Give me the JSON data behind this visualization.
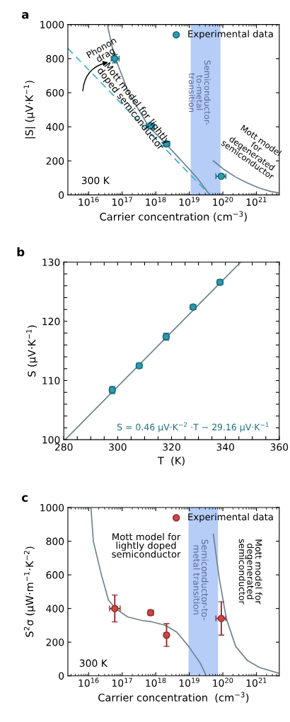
{
  "chart_data": [
    {
      "type": "scatter",
      "title": "a",
      "xlabel": "Carrier concentration (cm$^{−3}$)",
      "ylabel": "|S| (μV·K$^{−1}$)",
      "log": "x",
      "legend": "top right",
      "xlim": [
        2400000000000000.0,
        4.8e+21
      ],
      "ylim": [
        0,
        1000
      ],
      "xticks": [
        {
          "value": 1e+16,
          "label": "10$^{16}$"
        },
        {
          "value": 1e+17,
          "label": "10$^{17}$"
        },
        {
          "value": 1e+18,
          "label": "10$^{18}$"
        },
        {
          "value": 1e+19,
          "label": "10$^{19}$"
        },
        {
          "value": 1e+20,
          "label": "10$^{20}$"
        },
        {
          "value": 1e+21,
          "label": "10$^{21}$"
        }
      ],
      "yticks": [
        0,
        200,
        400,
        600,
        800,
        1000
      ],
      "bands": [
        {
          "axis": "x",
          "from": 1.1e+19,
          "to": 8.5e+19,
          "color": "#6c9cf0"
        }
      ],
      "series": [
        {
          "type": "line",
          "color": "#6b8290",
          "line_style": "solid",
          "x": [
            3.6e+16,
            5e+16,
            6.3e+16,
            1.55e+17,
            6.2e+17,
            2e+18,
            5.9e+18,
            1.7e+19,
            4.1e+19
          ],
          "values": [
            1000,
            870,
            800,
            600,
            400,
            300,
            200,
            100,
            0
          ]
        },
        {
          "type": "line",
          "color": "#3fb0c8",
          "line_style": "dashed",
          "x": [
            2400000000000000.0,
            4.1e+19
          ],
          "values": [
            860,
            0
          ]
        },
        {
          "type": "line",
          "color": "#6b8290",
          "line_style": "solid",
          "x": [
            5.2e+19,
            1.07e+20,
            2.4e+20,
            5.4e+20,
            1.23e+21,
            2.75e+21,
            4.8e+21
          ],
          "values": [
            200,
            150,
            105,
            70,
            40,
            20,
            12
          ]
        },
        {
          "name": "Experimental data",
          "marker": "circle",
          "color": "#2a9bb0",
          "x": [
            6e+16,
            7e+17,
            2.1e+18,
            9e+19
          ],
          "values": [
            800,
            405,
            300,
            110
          ],
          "errors": [
            25,
            15,
            15,
            10
          ],
          "xerrors": [
            [
              4.7e+16,
              8.1e+16
            ],
            [
              5.2e+17,
              9.1e+17
            ],
            [
              1.7e+18,
              2.6e+18
            ],
            [
              6.2e+19,
              1.23e+20
            ]
          ]
        }
      ],
      "annotations": [
        "Phonon\ndrag",
        "Mott model for lightly\ndoped semiconductor",
        "Semiconductor-\nto-metal\ntransition",
        "Mott model\nfor\ndegenerated\nsemiconductor",
        "300 K"
      ]
    },
    {
      "type": "scatter",
      "title": "b",
      "xlabel": "T  (K)",
      "ylabel": "S (μV·K$^{−1}$)",
      "xlim": [
        280,
        360
      ],
      "ylim": [
        100,
        130
      ],
      "xticks": [
        280,
        {
          "value": 285,
          "label": null
        },
        {
          "value": 290,
          "label": null
        },
        {
          "value": 295,
          "label": null
        },
        300,
        {
          "value": 305,
          "label": null
        },
        {
          "value": 310,
          "label": null
        },
        {
          "value": 315,
          "label": null
        },
        320,
        {
          "value": 325,
          "label": null
        },
        {
          "value": 330,
          "label": null
        },
        {
          "value": 335,
          "label": null
        },
        340,
        {
          "value": 345,
          "label": null
        },
        {
          "value": 350,
          "label": null
        },
        {
          "value": 355,
          "label": null
        },
        360
      ],
      "yticks": [
        100,
        {
          "value": 102,
          "label": null
        },
        {
          "value": 104,
          "label": null
        },
        {
          "value": 106,
          "label": null
        },
        {
          "value": 108,
          "label": null
        },
        110,
        {
          "value": 112,
          "label": null
        },
        {
          "value": 114,
          "label": null
        },
        {
          "value": 116,
          "label": null
        },
        {
          "value": 118,
          "label": null
        },
        120,
        {
          "value": 122,
          "label": null
        },
        {
          "value": 124,
          "label": null
        },
        {
          "value": 126,
          "label": null
        },
        {
          "value": 128,
          "label": null
        },
        130
      ],
      "series": [
        {
          "type": "line",
          "color": "#6b8290",
          "line_style": "solid",
          "x": [
            280.5,
            345.7
          ],
          "values": [
            100,
            130
          ]
        },
        {
          "marker": "circle",
          "color": "#2a9bb0",
          "x": [
            298,
            308,
            318,
            328,
            338
          ],
          "values": [
            108.4,
            112.5,
            117.4,
            122.4,
            126.6
          ],
          "errors": [
            0.6,
            0.4,
            0.6,
            0.4,
            0.4
          ],
          "xerrors": [
            1,
            1,
            1,
            1,
            1
          ]
        }
      ],
      "annotations": [
        "S = 0.46 μV·K$^{−2}$ ·T − 29.16 μV·K$^{−1}$"
      ]
    },
    {
      "type": "scatter",
      "title": "c",
      "xlabel": "Carrier concentration  (cm$^{−3}$)",
      "ylabel": "S$^{2}$σ (μW·m$^{−1}$·K$^{−2}$)",
      "log": "x",
      "legend": "top right",
      "xlim": [
        2400000000000000.0,
        4.8e+21
      ],
      "ylim": [
        0,
        1000
      ],
      "xticks": [
        {
          "value": 1e+16,
          "label": "10$^{16}$"
        },
        {
          "value": 1e+17,
          "label": "10$^{17}$"
        },
        {
          "value": 1e+18,
          "label": "10$^{18}$"
        },
        {
          "value": 1e+19,
          "label": "10$^{19}$"
        },
        {
          "value": 1e+20,
          "label": "10$^{20}$"
        },
        {
          "value": 1e+21,
          "label": "10$^{21}$"
        }
      ],
      "yticks": [
        0,
        200,
        400,
        600,
        800,
        1000
      ],
      "bands": [
        {
          "axis": "x",
          "from": 9.5e+18,
          "to": 7.2e+19,
          "color": "#6c9cf0"
        }
      ],
      "series": [
        {
          "type": "line",
          "color": "#6b8290",
          "line_style": "solid",
          "x": [
            1.17e+16,
            1.38e+16,
            2.4e+16,
            3.9e+16,
            6.3e+16,
            1.45e+17,
            3.8e+17,
            7.2e+17,
            1.9e+18,
            4.3e+18,
            9.5e+18,
            2.1e+19,
            3.2e+19
          ],
          "values": [
            1000,
            800,
            600,
            450,
            400,
            350,
            329,
            322,
            301,
            259,
            175,
            77,
            0
          ]
        },
        {
          "type": "line",
          "color": "#6b8290",
          "line_style": "solid",
          "x": [
            5.2e+19,
            7.8e+19,
            1.26e+20,
            2.4e+20,
            5.4e+20,
            1.23e+21,
            4.8e+21
          ],
          "values": [
            842,
            580,
            343,
            175,
            91,
            49,
            14
          ]
        },
        {
          "name": "Experimental data",
          "marker": "circle",
          "color": "#d04545",
          "x": [
            6e+16,
            7e+17,
            2.1e+18,
            9e+19
          ],
          "values": [
            400,
            375,
            242,
            341
          ],
          "errors": [
            [
              320,
              480
            ],
            15,
            [
              175,
              310
            ],
            [
              242,
              440
            ]
          ],
          "xerrors": [
            [
              4.2e+16,
              8.7e+16
            ],
            [
              6e+17,
              8.5e+17
            ],
            [
              1.8e+18,
              2.4e+18
            ],
            [
              6.2e+19,
              1.23e+20
            ]
          ]
        }
      ],
      "annotations": [
        "Mott model for\nlightly doped\nsemiconductor",
        "Semiconductor-to-\nmetal transition",
        "Mott model for\ndegenerated\nsemiconductor",
        "300 K"
      ]
    }
  ]
}
